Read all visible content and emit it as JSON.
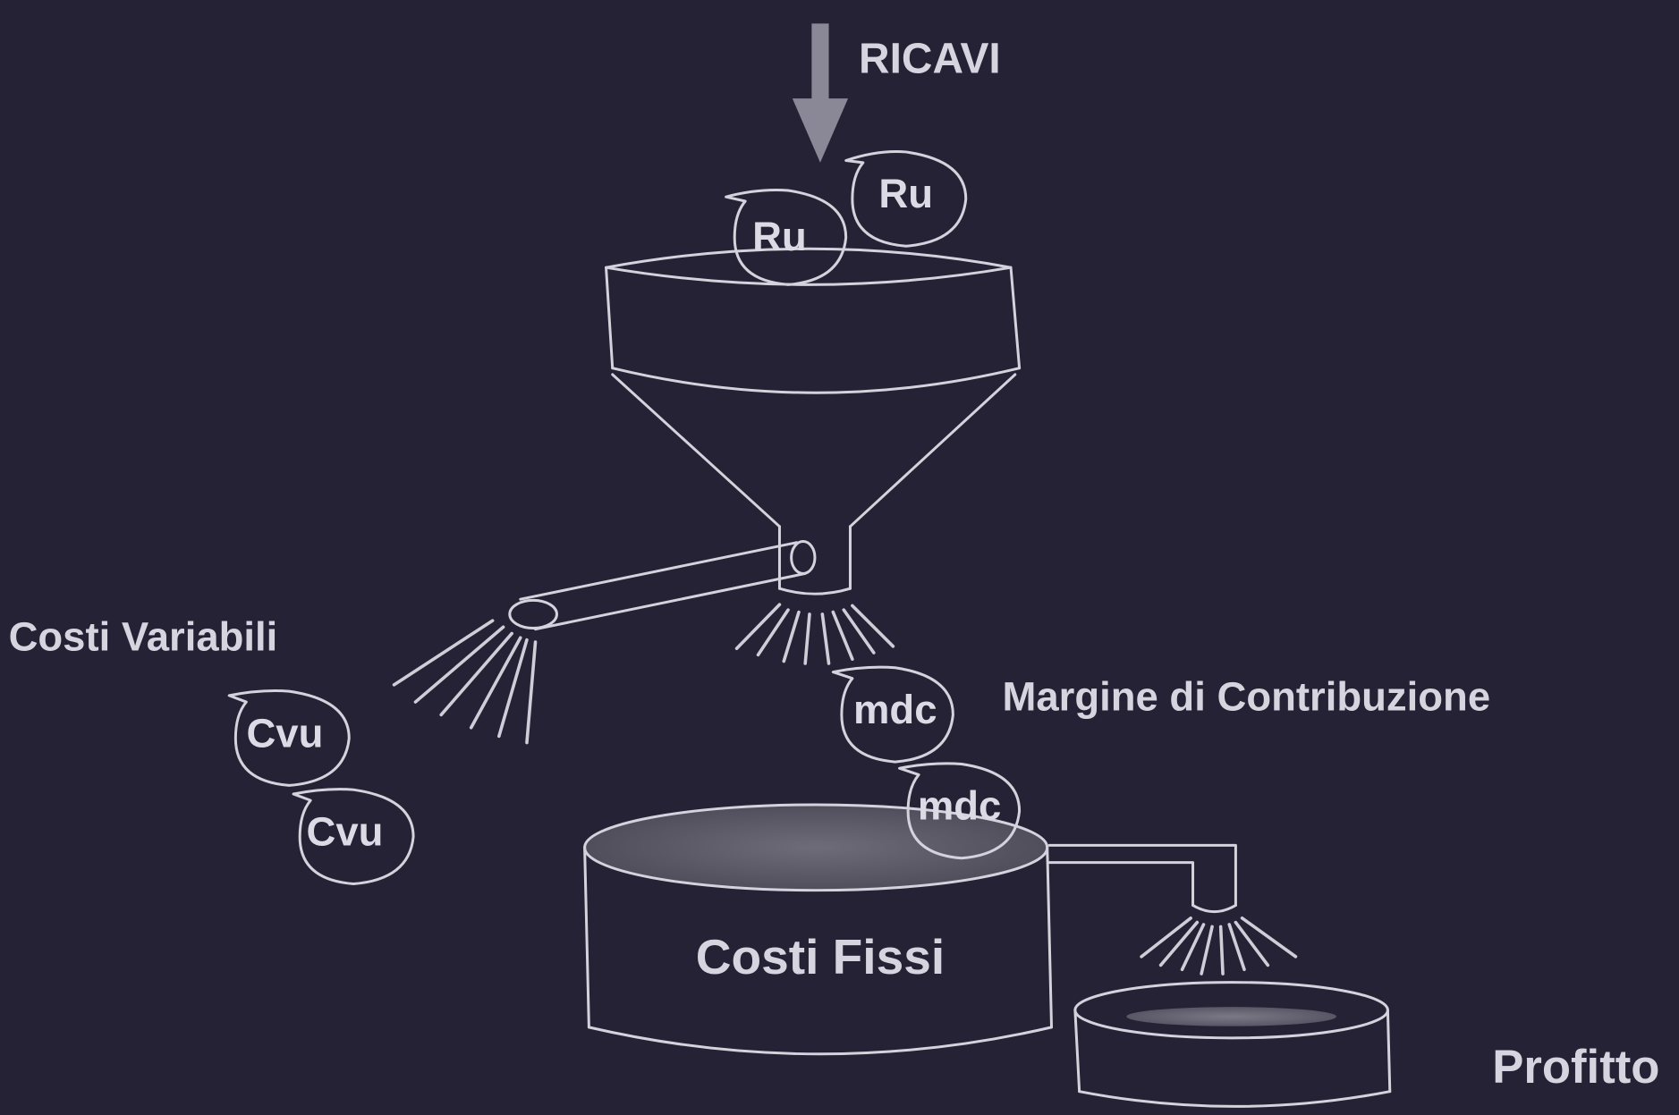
{
  "labels": {
    "revenue": "RICAVI",
    "variable_costs": "Costi Variabili",
    "contribution_margin": "Margine di Contribuzione",
    "fixed_costs": "Costi Fissi",
    "profit": "Profitto"
  },
  "coins": {
    "revenue_unit": "Ru",
    "variable_cost_unit": "Cvu",
    "margin_unit": "mdc"
  },
  "colors": {
    "background": "#242234",
    "line": "#d4d2dc",
    "arrow": "#8a8896",
    "text": "#d6d4de"
  }
}
